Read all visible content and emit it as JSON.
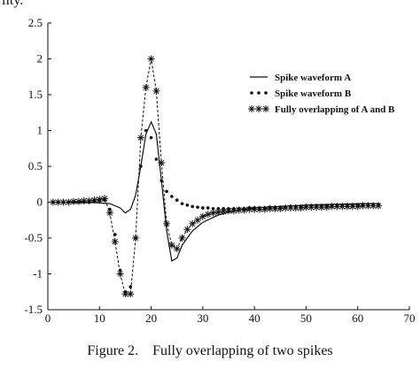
{
  "top_fragment": "lity.",
  "caption": "Figure 2.    Fully overlapping of two spikes",
  "chart_data": {
    "type": "line",
    "xlim": [
      0,
      70
    ],
    "ylim": [
      -1.5,
      2.5
    ],
    "xticks": [
      "0",
      "10",
      "20",
      "30",
      "40",
      "50",
      "60",
      "70"
    ],
    "yticks": [
      "-1.5",
      "-1",
      "-0.5",
      "0",
      "0.5",
      "1",
      "1.5",
      "2",
      "2.5"
    ],
    "grid": false,
    "legend_position": "upper-right",
    "series": [
      {
        "name": "Spike waveform A",
        "style": "solid",
        "color": "#111111",
        "x": [
          1,
          4,
          8,
          12,
          14,
          15,
          16,
          17,
          18,
          19,
          20,
          21,
          22,
          23,
          24,
          25,
          26,
          28,
          30,
          33,
          36,
          40,
          45,
          50,
          55,
          60,
          64
        ],
        "y": [
          0,
          0,
          0,
          -0.02,
          -0.08,
          -0.15,
          -0.1,
          0.1,
          0.5,
          0.95,
          1.12,
          0.95,
          0.3,
          -0.4,
          -0.82,
          -0.78,
          -0.6,
          -0.4,
          -0.28,
          -0.18,
          -0.12,
          -0.08,
          -0.06,
          -0.04,
          -0.03,
          -0.02,
          -0.02
        ]
      },
      {
        "name": "Spike waveform B",
        "style": "dotted",
        "color": "#111111",
        "x": [
          1,
          2,
          3,
          4,
          5,
          6,
          7,
          8,
          9,
          10,
          11,
          12,
          13,
          14,
          15,
          16,
          17,
          18,
          19,
          20,
          21,
          22,
          23,
          24,
          25,
          26,
          27,
          28,
          29,
          30,
          31,
          32,
          33,
          34,
          35,
          36,
          37,
          38,
          39,
          40,
          41,
          42,
          43,
          44,
          45,
          46,
          47,
          48,
          49,
          50,
          51,
          52,
          53,
          54,
          55,
          56,
          57,
          58,
          59,
          60,
          61,
          62,
          63,
          64
        ],
        "y": [
          0,
          0,
          0,
          0,
          0,
          0,
          0,
          0,
          0.01,
          0.02,
          0.03,
          -0.1,
          -0.45,
          -0.95,
          -1.25,
          -1.18,
          -0.5,
          0.5,
          1.0,
          0.9,
          0.6,
          0.3,
          0.15,
          0.08,
          0.03,
          -0.02,
          -0.04,
          -0.06,
          -0.07,
          -0.08,
          -0.08,
          -0.09,
          -0.09,
          -0.09,
          -0.09,
          -0.09,
          -0.09,
          -0.09,
          -0.08,
          -0.08,
          -0.08,
          -0.08,
          -0.07,
          -0.07,
          -0.07,
          -0.07,
          -0.06,
          -0.06,
          -0.06,
          -0.06,
          -0.05,
          -0.05,
          -0.05,
          -0.05,
          -0.05,
          -0.04,
          -0.04,
          -0.04,
          -0.04,
          -0.04,
          -0.03,
          -0.03,
          -0.03,
          -0.03
        ]
      },
      {
        "name": "Fully overlapping of A and B",
        "style": "dashed-star",
        "color": "#111111",
        "x": [
          1,
          2,
          3,
          4,
          5,
          6,
          7,
          8,
          9,
          10,
          11,
          12,
          13,
          14,
          15,
          16,
          17,
          18,
          19,
          20,
          21,
          22,
          23,
          24,
          25,
          26,
          27,
          28,
          29,
          30,
          31,
          32,
          33,
          34,
          35,
          36,
          37,
          38,
          39,
          40,
          41,
          42,
          43,
          44,
          45,
          46,
          47,
          48,
          49,
          50,
          51,
          52,
          53,
          54,
          55,
          56,
          57,
          58,
          59,
          60,
          61,
          62,
          63,
          64
        ],
        "y": [
          0,
          0,
          0,
          0,
          0.01,
          0.01,
          0.02,
          0.02,
          0.03,
          0.04,
          0.05,
          -0.15,
          -0.55,
          -1.0,
          -1.28,
          -1.28,
          -0.5,
          0.9,
          1.6,
          2.0,
          1.55,
          0.55,
          -0.3,
          -0.6,
          -0.65,
          -0.5,
          -0.38,
          -0.3,
          -0.25,
          -0.2,
          -0.17,
          -0.15,
          -0.14,
          -0.13,
          -0.12,
          -0.12,
          -0.11,
          -0.11,
          -0.1,
          -0.1,
          -0.1,
          -0.1,
          -0.09,
          -0.09,
          -0.09,
          -0.08,
          -0.08,
          -0.08,
          -0.08,
          -0.07,
          -0.07,
          -0.07,
          -0.07,
          -0.07,
          -0.06,
          -0.06,
          -0.06,
          -0.06,
          -0.06,
          -0.06,
          -0.05,
          -0.05,
          -0.05,
          -0.05
        ]
      }
    ]
  }
}
